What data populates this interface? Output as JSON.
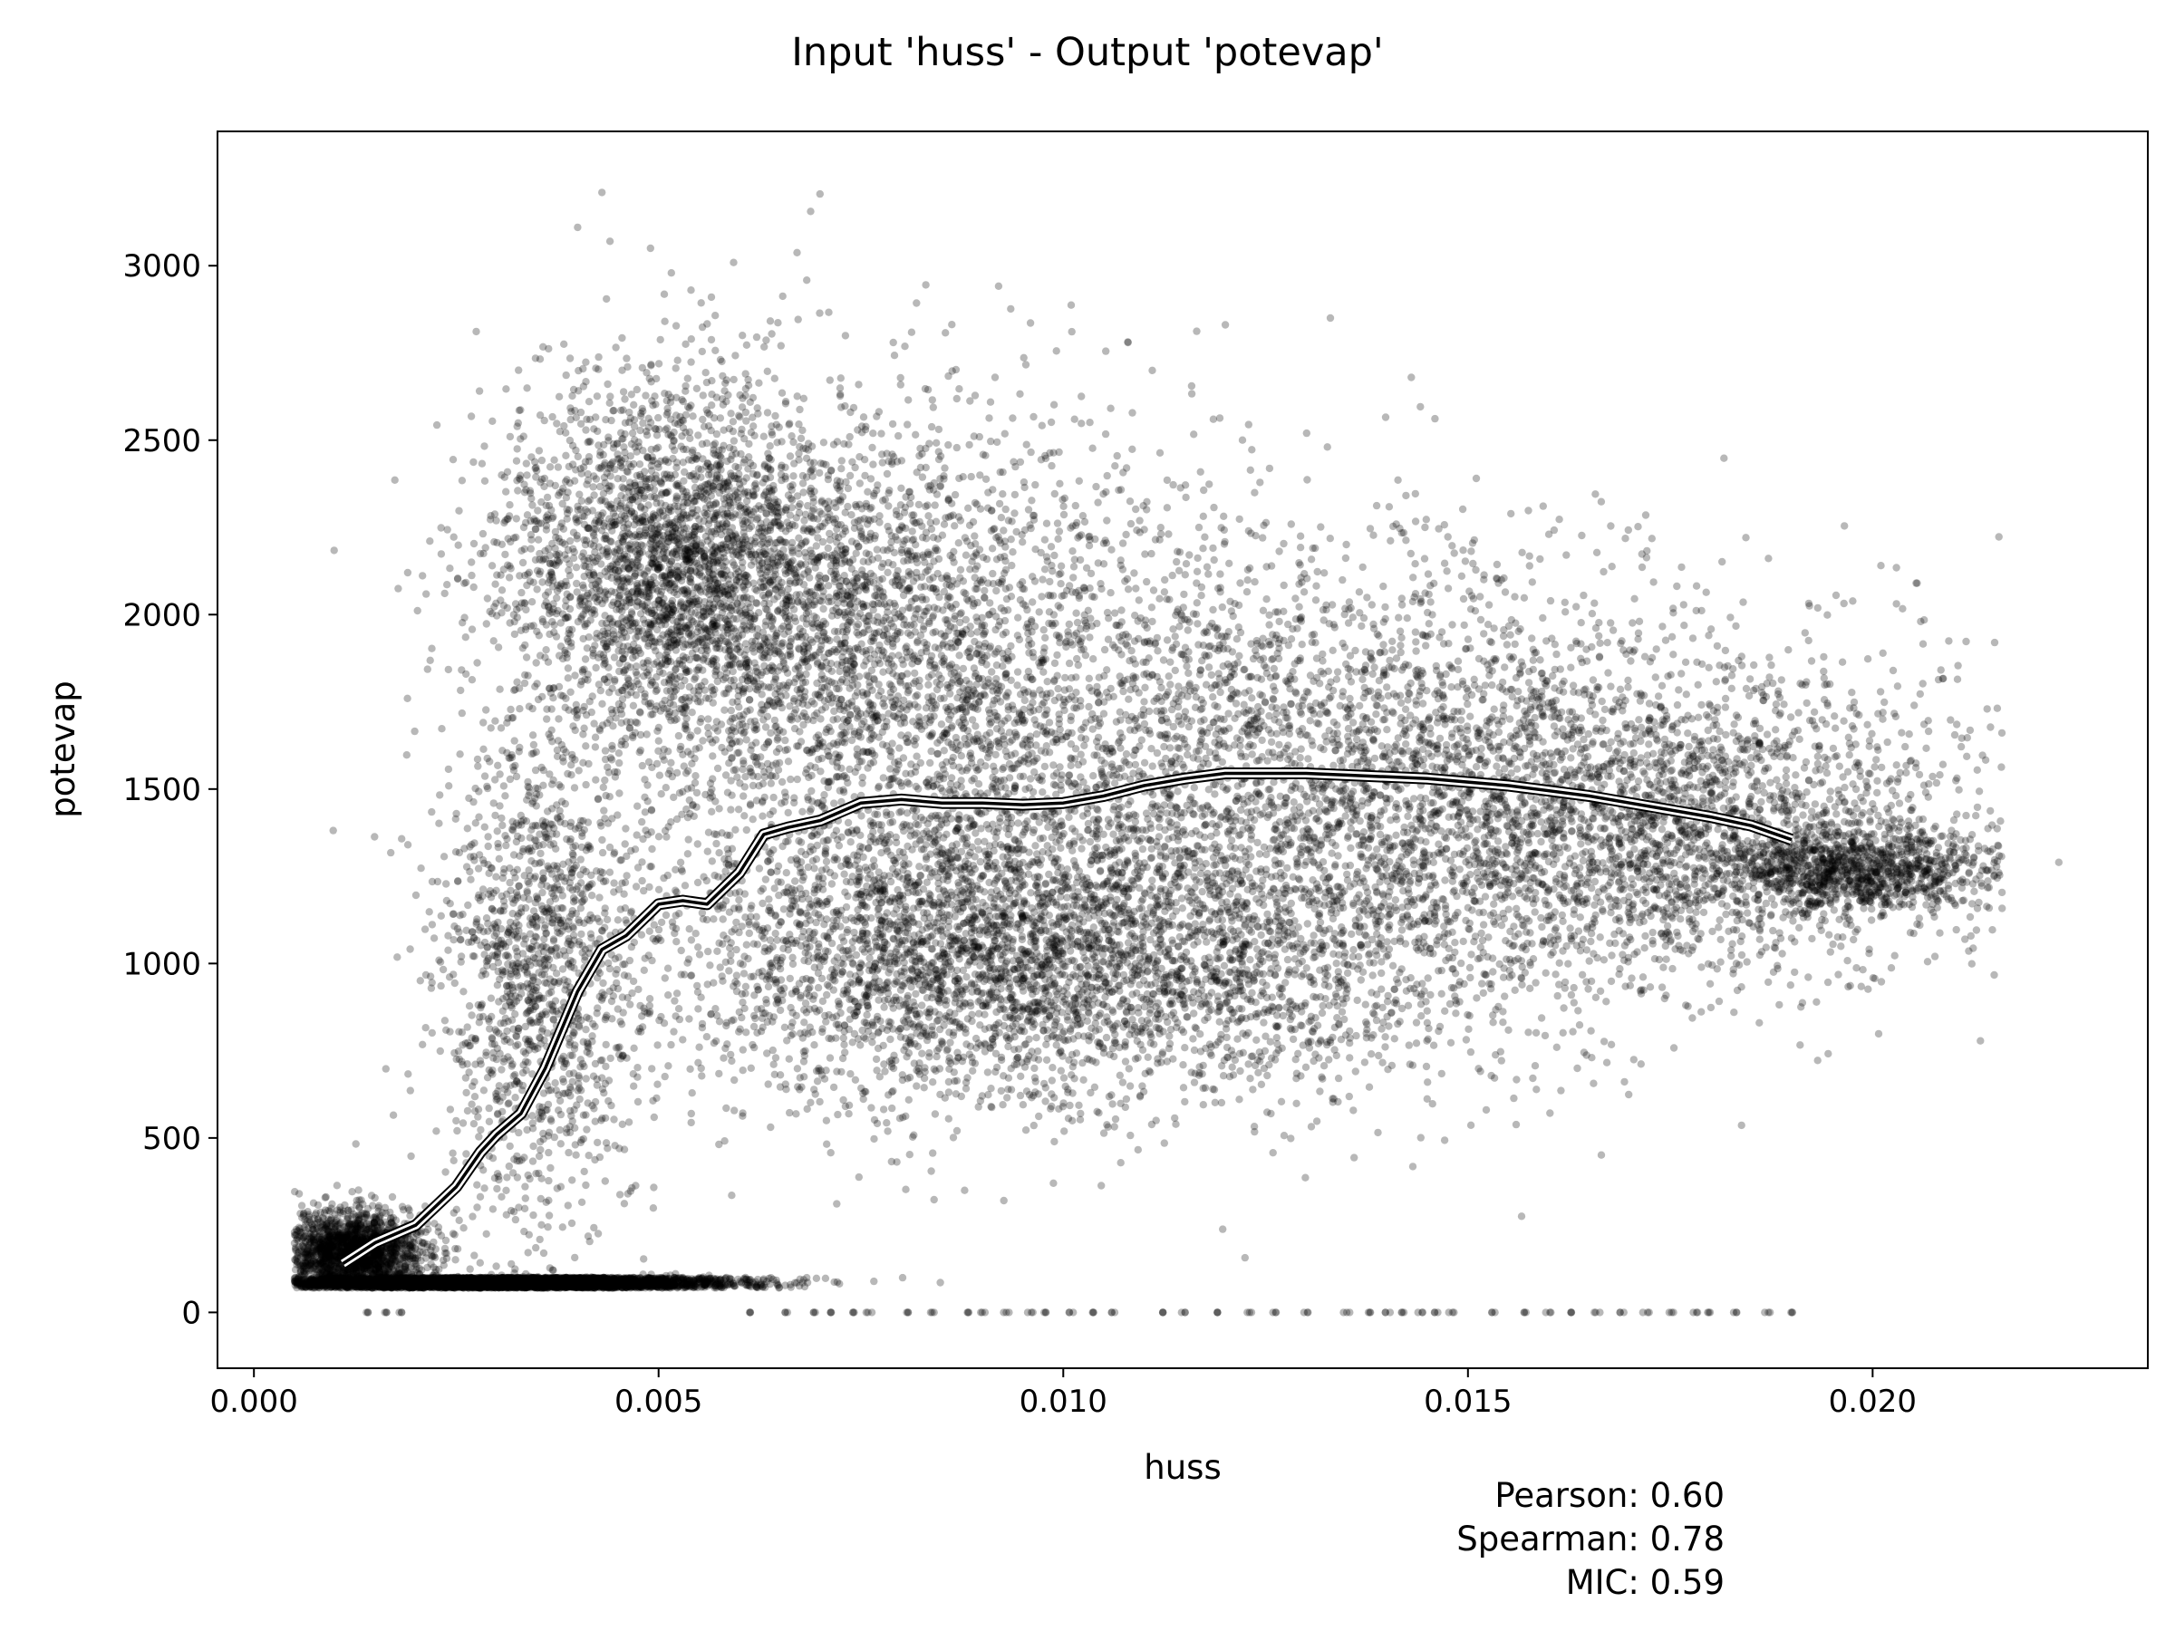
{
  "chart_data": {
    "type": "scatter",
    "title": "Input 'huss' - Output 'potevap'",
    "xlabel": "huss",
    "ylabel": "potevap",
    "xlim": [
      -0.00045,
      0.0234
    ],
    "ylim": [
      -160,
      3385
    ],
    "x_ticks": [
      {
        "value": 0.0,
        "label": "0.000"
      },
      {
        "value": 0.005,
        "label": "0.005"
      },
      {
        "value": 0.01,
        "label": "0.010"
      },
      {
        "value": 0.015,
        "label": "0.015"
      },
      {
        "value": 0.02,
        "label": "0.020"
      }
    ],
    "y_ticks": [
      {
        "value": 0,
        "label": "0"
      },
      {
        "value": 500,
        "label": "500"
      },
      {
        "value": 1000,
        "label": "1000"
      },
      {
        "value": 1500,
        "label": "1500"
      },
      {
        "value": 2000,
        "label": "2000"
      },
      {
        "value": 2500,
        "label": "2500"
      },
      {
        "value": 3000,
        "label": "3000"
      }
    ],
    "grid": false,
    "legend": "none",
    "point_color": "#000000",
    "trend_line_color": "#000000",
    "trend_line_outline_color": "#ffffff",
    "trend_line": {
      "x": [
        0.0011,
        0.0015,
        0.002,
        0.0025,
        0.0028,
        0.003,
        0.0033,
        0.0036,
        0.004,
        0.0043,
        0.0046,
        0.005,
        0.0053,
        0.0056,
        0.006,
        0.0063,
        0.0066,
        0.007,
        0.0075,
        0.008,
        0.0085,
        0.009,
        0.0095,
        0.01,
        0.0105,
        0.011,
        0.0115,
        0.012,
        0.0125,
        0.013,
        0.0135,
        0.014,
        0.0145,
        0.015,
        0.0155,
        0.016,
        0.0165,
        0.017,
        0.0175,
        0.018,
        0.0185,
        0.019
      ],
      "y": [
        140,
        200,
        250,
        360,
        460,
        510,
        570,
        700,
        920,
        1040,
        1080,
        1170,
        1180,
        1170,
        1260,
        1370,
        1390,
        1410,
        1460,
        1470,
        1460,
        1460,
        1455,
        1460,
        1480,
        1510,
        1530,
        1545,
        1545,
        1545,
        1540,
        1535,
        1530,
        1520,
        1510,
        1495,
        1480,
        1460,
        1440,
        1420,
        1395,
        1355
      ]
    },
    "point_clusters": [
      {
        "name": "",
        "count": 5200,
        "x_mean": 0.0031,
        "x_sd": 0.0013,
        "y_mean": 0.115,
        "y_sd": 0.035,
        "y_is_ratio_of_x": true
      },
      {
        "name": "",
        "count": 2000,
        "x_mean": 0.0012,
        "x_sd": 0.00045,
        "y_mean": 170,
        "y_sd": 60
      },
      {
        "name": "",
        "count": 2600,
        "x_mean": 0.0052,
        "x_sd": 0.0011,
        "y_mean": 2150,
        "y_sd": 260
      },
      {
        "name": "",
        "count": 2400,
        "x_mean": 0.0075,
        "x_sd": 0.0017,
        "y_mean": 1950,
        "y_sd": 330
      },
      {
        "name": "",
        "count": 3200,
        "x_mean": 0.0125,
        "x_sd": 0.003,
        "y_mean": 1600,
        "y_sd": 330
      },
      {
        "name": "",
        "count": 2800,
        "x_mean": 0.0088,
        "x_sd": 0.0022,
        "y_mean": 1050,
        "y_sd": 230
      },
      {
        "name": "",
        "count": 2600,
        "x_mean": 0.017,
        "x_sd": 0.0022,
        "y_mean": 1400,
        "y_sd": 230
      },
      {
        "name": "",
        "count": 1100,
        "x_mean": 0.0198,
        "x_sd": 0.0009,
        "y_mean": 1270,
        "y_sd": 60
      },
      {
        "name": "",
        "count": 1300,
        "x_mean": 0.0035,
        "x_sd": 0.0006,
        "y_mean": 950,
        "y_sd": 380
      },
      {
        "name": "",
        "count": 1600,
        "x_mean": 0.0113,
        "x_sd": 0.0025,
        "y_mean": 1000,
        "y_sd": 200
      }
    ],
    "outliers": [
      {
        "x": 0.0043,
        "y": 3210
      },
      {
        "x": 0.004,
        "y": 3110
      },
      {
        "x": 0.0049,
        "y": 3050
      },
      {
        "x": 0.0044,
        "y": 3070
      },
      {
        "x": 0.0054,
        "y": 2930
      },
      {
        "x": 0.0133,
        "y": 2850
      },
      {
        "x": 0.0108,
        "y": 2780
      },
      {
        "x": 0.0143,
        "y": 2680
      },
      {
        "x": 0.0223,
        "y": 1290
      },
      {
        "x": 0.0215,
        "y": 1250
      },
      {
        "x": 0.0186,
        "y": 830
      },
      {
        "x": 0.0145,
        "y": 660
      },
      {
        "x": 0.0079,
        "y": 2780
      },
      {
        "x": 0.0111,
        "y": 2700
      }
    ],
    "zero_row": {
      "y": 0,
      "x": [
        0.0014,
        0.0016,
        0.0018,
        0.0061,
        0.0066,
        0.0069,
        0.0071,
        0.0074,
        0.0076,
        0.0081,
        0.0084,
        0.0088,
        0.009,
        0.0093,
        0.0096,
        0.0098,
        0.0101,
        0.0104,
        0.0106,
        0.0112,
        0.0115,
        0.0119,
        0.0123,
        0.0126,
        0.013,
        0.0135,
        0.0138,
        0.014,
        0.0142,
        0.0144,
        0.0146,
        0.0148,
        0.0153,
        0.0157,
        0.016,
        0.0163,
        0.0166,
        0.0169,
        0.0172,
        0.0175,
        0.0178,
        0.018,
        0.0183,
        0.0187,
        0.019
      ]
    },
    "statistics": [
      {
        "label": "Pearson:",
        "value": "0.60"
      },
      {
        "label": "Spearman:",
        "value": "0.78"
      },
      {
        "label": "MIC:",
        "value": "0.59"
      }
    ]
  }
}
